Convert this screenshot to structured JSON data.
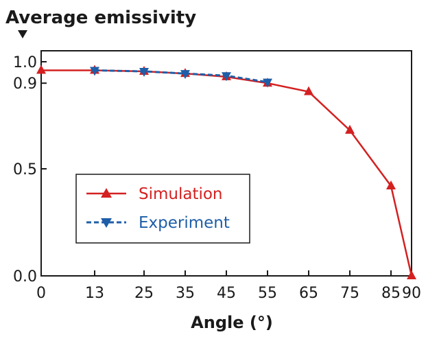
{
  "chart_data": {
    "type": "line",
    "ylabel": "Average emissivity",
    "xlabel": "Angle (°)",
    "xlim": [
      0,
      90
    ],
    "ylim": [
      0.0,
      1.0
    ],
    "xticks": [
      "0",
      "13",
      "25",
      "35",
      "45",
      "55",
      "65",
      "75",
      "85",
      "90"
    ],
    "yticks": [
      "0.0",
      "0.5",
      "0.9",
      "1.0"
    ],
    "grid": false,
    "legend_position": "lower-left",
    "series": [
      {
        "name": "Simulation",
        "color": "#d42020",
        "marker": "triangle-up",
        "line_style": "solid",
        "x": [
          0,
          13,
          25,
          35,
          45,
          55,
          65,
          75,
          85,
          90
        ],
        "y": [
          0.96,
          0.96,
          0.955,
          0.945,
          0.93,
          0.9,
          0.86,
          0.68,
          0.42,
          0.0
        ]
      },
      {
        "name": "Experiment",
        "color": "#1e5ea8",
        "marker": "triangle-down",
        "line_style": "dashed",
        "x": [
          13,
          25,
          35,
          45,
          55
        ],
        "y": [
          0.96,
          0.955,
          0.945,
          0.935,
          0.905
        ]
      }
    ]
  }
}
